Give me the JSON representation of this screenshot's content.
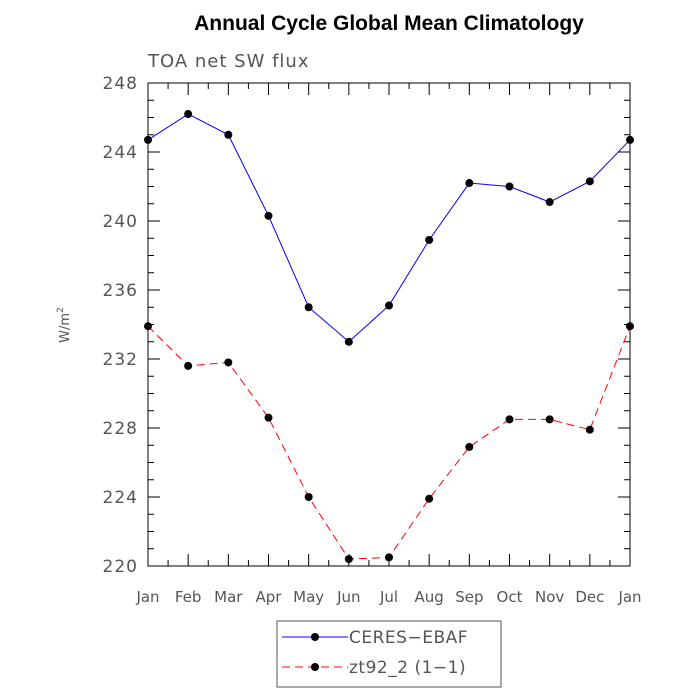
{
  "chart_data": {
    "type": "line",
    "title": "Annual Cycle Global Mean Climatology",
    "subtitle": "TOA net SW flux",
    "xlabel": "",
    "ylabel": "W/m",
    "ylabel_superscript": "2",
    "ylim": [
      220,
      248
    ],
    "yticks": [
      220,
      224,
      228,
      232,
      236,
      240,
      244,
      248
    ],
    "yticks_minor_step": 1,
    "categories": [
      "Jan",
      "Feb",
      "Mar",
      "Apr",
      "May",
      "Jun",
      "Jul",
      "Aug",
      "Sep",
      "Oct",
      "Nov",
      "Dec",
      "Jan"
    ],
    "series": [
      {
        "name": "CERES−EBAF",
        "color": "#0000ff",
        "dash": "solid",
        "marker": "filled-circle",
        "values": [
          244.7,
          246.2,
          245.0,
          240.3,
          235.0,
          233.0,
          235.1,
          238.9,
          242.2,
          242.0,
          241.1,
          242.3,
          244.7
        ]
      },
      {
        "name": "zt92_2 (1−1)",
        "color": "#ff0000",
        "dash": "dashed",
        "marker": "filled-circle",
        "values": [
          233.9,
          231.6,
          231.8,
          228.6,
          224.0,
          220.4,
          220.5,
          223.9,
          226.9,
          228.5,
          228.5,
          227.9,
          233.9
        ]
      }
    ],
    "legend_position": "bottom-center",
    "grid": false
  }
}
